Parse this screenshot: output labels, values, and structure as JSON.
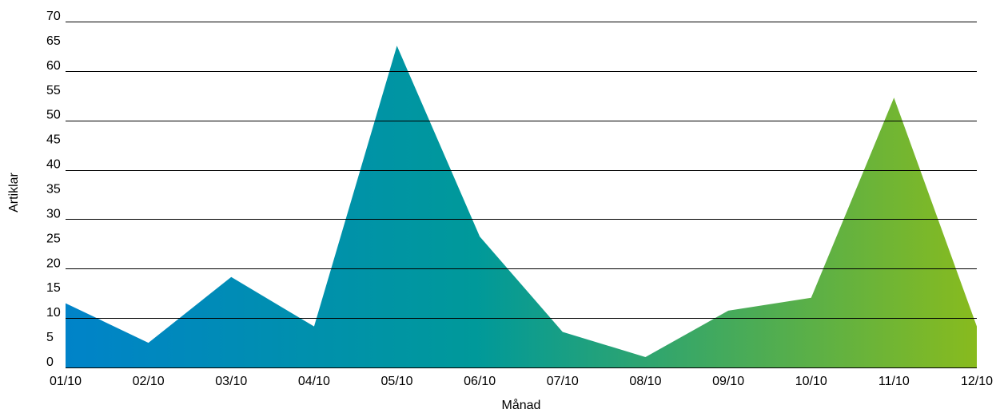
{
  "chart_data": {
    "type": "area",
    "title": "",
    "xlabel": "Månad",
    "ylabel": "Artiklar",
    "categories": [
      "01/10",
      "02/10",
      "03/10",
      "04/10",
      "05/10",
      "06/10",
      "07/10",
      "08/10",
      "09/10",
      "10/10",
      "11/10",
      "12/10"
    ],
    "series": [
      {
        "values": [
          13,
          5,
          18.3,
          8.3,
          65.1,
          26.5,
          7.2,
          2.1,
          11.5,
          14.1,
          54.6,
          8.3
        ]
      }
    ],
    "ylim": [
      0,
      70
    ],
    "yticks": [
      0,
      5,
      10,
      15,
      20,
      25,
      30,
      35,
      40,
      45,
      50,
      55,
      60,
      65,
      70
    ],
    "grid": true,
    "legend": "none",
    "colors": {
      "gradient_stops": [
        "#0083c9",
        "#00999a",
        "#88bb1e"
      ],
      "gridline": "#000000",
      "text": "#000000"
    }
  }
}
